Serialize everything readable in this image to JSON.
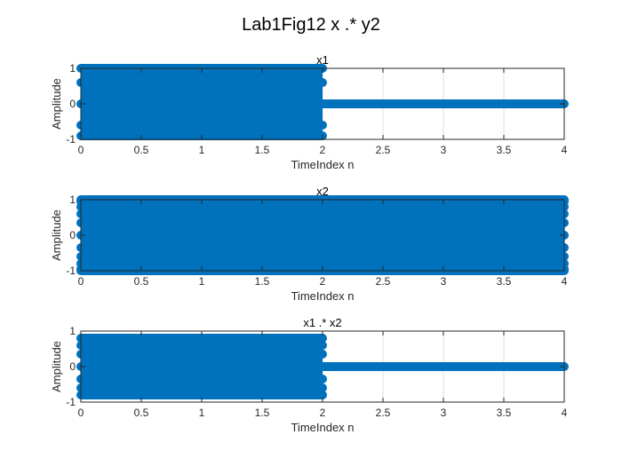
{
  "figure": {
    "title": "Lab1Fig12 x .* y2",
    "stem_color": "#0072bd",
    "grid_color": "#dfdfdf",
    "axis_color": "#262626"
  },
  "chart_data": [
    {
      "type": "stem",
      "title": "x1",
      "xlabel": "TimeIndex n",
      "ylabel": "Amplitude",
      "xlim": [
        0,
        4
      ],
      "ylim": [
        -1,
        1
      ],
      "xticks": [
        "0",
        "0.5",
        "1",
        "1.5",
        "2",
        "2.5",
        "3",
        "3.5",
        "4"
      ],
      "yticks": [
        "-1",
        "0",
        "1"
      ],
      "grid": "x",
      "segments": [
        {
          "x_start": 0,
          "x_end": 2,
          "amplitude_levels": [
            1,
            0.6,
            0,
            -0.6,
            -0.9
          ],
          "envelope": [
            -0.95,
            0.98
          ]
        },
        {
          "x_start": 2,
          "x_end": 4,
          "amplitude_levels": [
            0
          ],
          "envelope": [
            0,
            0
          ]
        }
      ]
    },
    {
      "type": "stem",
      "title": "x2",
      "xlabel": "TimeIndex n",
      "ylabel": "Amplitude",
      "xlim": [
        0,
        4
      ],
      "ylim": [
        -1,
        1
      ],
      "xticks": [
        "0",
        "0.5",
        "1",
        "1.5",
        "2",
        "2.5",
        "3",
        "3.5",
        "4"
      ],
      "yticks": [
        "-1",
        "0",
        "1"
      ],
      "grid": "x",
      "segments": [
        {
          "x_start": 0,
          "x_end": 4,
          "amplitude_levels": [
            1,
            0.95,
            0.8,
            0.6,
            0.35,
            0,
            -0.35,
            -0.6,
            -0.8,
            -0.95,
            -1
          ],
          "envelope": [
            -1,
            1
          ]
        }
      ]
    },
    {
      "type": "stem",
      "title": "x1 .* x2",
      "xlabel": "TimeIndex n",
      "ylabel": "Amplitude",
      "xlim": [
        0,
        4
      ],
      "ylim": [
        -1,
        1
      ],
      "xticks": [
        "0",
        "0.5",
        "1",
        "1.5",
        "2",
        "2.5",
        "3",
        "3.5",
        "4"
      ],
      "yticks": [
        "-1",
        "0",
        "1"
      ],
      "grid": "x",
      "segments": [
        {
          "x_start": 0,
          "x_end": 2,
          "amplitude_levels": [
            0.8,
            0.6,
            0.35,
            0,
            -0.35,
            -0.6,
            -0.8
          ],
          "envelope": [
            -0.8,
            0.82
          ]
        },
        {
          "x_start": 2,
          "x_end": 4,
          "amplitude_levels": [
            0
          ],
          "envelope": [
            0,
            0
          ]
        }
      ]
    }
  ]
}
